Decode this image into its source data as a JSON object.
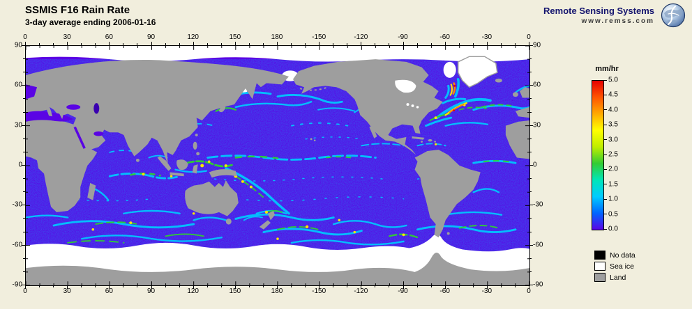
{
  "header": {
    "title": "SSMIS F16 Rain Rate",
    "subtitle": "3-day average ending 2006-01-16"
  },
  "branding": {
    "name": "Remote Sensing Systems",
    "url": "www.remss.com"
  },
  "map": {
    "lon_ticks": [
      "0",
      "30",
      "60",
      "90",
      "120",
      "150",
      "180",
      "-150",
      "-120",
      "-90",
      "-60",
      "-30",
      "0"
    ],
    "lat_ticks": [
      "90",
      "60",
      "30",
      "0",
      "-30",
      "-60",
      "-90"
    ]
  },
  "colorbar": {
    "units": "mm/hr",
    "min": 0.0,
    "max": 5.0,
    "tick_labels": [
      "5.0",
      "4.5",
      "4.0",
      "3.5",
      "3.0",
      "2.5",
      "2.0",
      "1.5",
      "1.0",
      "0.5",
      "0.0"
    ],
    "gradient_stops": [
      "#e60000",
      "#ff5500",
      "#ffaa00",
      "#ffff00",
      "#bfee00",
      "#33cc33",
      "#00e6b8",
      "#00ccff",
      "#0066ff",
      "#5b05e6"
    ]
  },
  "legend": {
    "items": [
      {
        "label": "No data",
        "color": "#000000"
      },
      {
        "label": "Sea ice",
        "color": "#ffffff"
      },
      {
        "label": "Land",
        "color": "#9e9e9e"
      }
    ]
  },
  "colors": {
    "background": "#f1eedd",
    "ocean_zero_rain": "#5a04e4",
    "land": "#9e9e9e",
    "sea_ice": "#ffffff",
    "no_data": "#000000",
    "rain_cyan": "#00c6ff",
    "rain_green": "#2fd12f",
    "rain_yellow": "#ffe400",
    "rain_orange": "#ff8800",
    "rain_red": "#e60000"
  }
}
